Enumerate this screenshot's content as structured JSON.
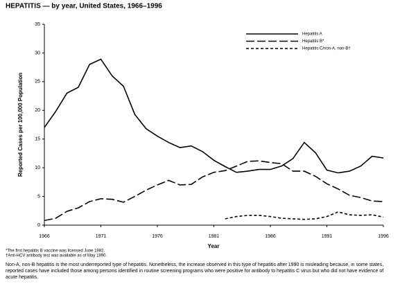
{
  "chart_data": {
    "type": "line",
    "title": "HEPATITIS — by year, United States, 1966–1996",
    "xlabel": "Year",
    "ylabel": "Reported Cases per 100,000 Population",
    "x": [
      1966,
      1967,
      1968,
      1969,
      1970,
      1971,
      1972,
      1973,
      1974,
      1975,
      1976,
      1977,
      1978,
      1979,
      1980,
      1981,
      1982,
      1983,
      1984,
      1985,
      1986,
      1987,
      1988,
      1989,
      1990,
      1991,
      1992,
      1993,
      1994,
      1995,
      1996
    ],
    "series": [
      {
        "name": "Hepatitis A",
        "color": "#000000",
        "dash": "solid",
        "values": [
          17,
          19.8,
          23,
          24,
          28,
          28.9,
          26,
          24.2,
          19.3,
          16.8,
          15.5,
          14.4,
          13.5,
          13.8,
          12.8,
          11.3,
          10.2,
          9.2,
          9.4,
          9.7,
          9.7,
          10.3,
          11.6,
          14.4,
          12.6,
          9.6,
          9.1,
          9.4,
          10.3,
          12,
          11.7
        ]
      },
      {
        "name": "Hepatitis B*",
        "color": "#000000",
        "dash": "long",
        "values": [
          0.8,
          1.2,
          2.4,
          3,
          4.1,
          4.6,
          4.5,
          4,
          5,
          6.1,
          7,
          7.8,
          7,
          7.1,
          8.4,
          9.2,
          9.5,
          10.3,
          11.1,
          11.2,
          10.9,
          10.7,
          9.4,
          9.4,
          8.5,
          7.2,
          6.3,
          5.2,
          4.8,
          4.2,
          4.1
        ]
      },
      {
        "name": "Hepatitis C/non-A, non-B†",
        "color": "#000000",
        "dash": "short",
        "values": [
          null,
          null,
          null,
          null,
          null,
          null,
          null,
          null,
          null,
          null,
          null,
          null,
          null,
          null,
          null,
          null,
          1.1,
          1.5,
          1.7,
          1.7,
          1.5,
          1.2,
          1.1,
          1.0,
          1.1,
          1.5,
          2.3,
          1.8,
          1.7,
          1.8,
          1.4
        ]
      }
    ],
    "xlim": [
      1966,
      1996
    ],
    "xticks": [
      1966,
      1971,
      1976,
      1981,
      1986,
      1991,
      1996
    ],
    "ylim": [
      0,
      35
    ],
    "yticks": [
      0,
      5,
      10,
      15,
      20,
      25,
      30,
      35
    ],
    "legend": "top-right",
    "footnotes": [
      "*The first hepatitis B vaccine was licensed June 1982.",
      "†Anti-HCV antibody test was available as of May 1990."
    ],
    "note": "Non-A, non-B hepatitis is the most underreported type of hepatitis. Nonetheless, the increase observed in this type of hepatitis after 1990 is misleading because, in some states, reported cases have included those among persons identified in routine screening programs who were positive for antibody to hepatitis C virus but who did not have evidence of acute hepatitis."
  }
}
